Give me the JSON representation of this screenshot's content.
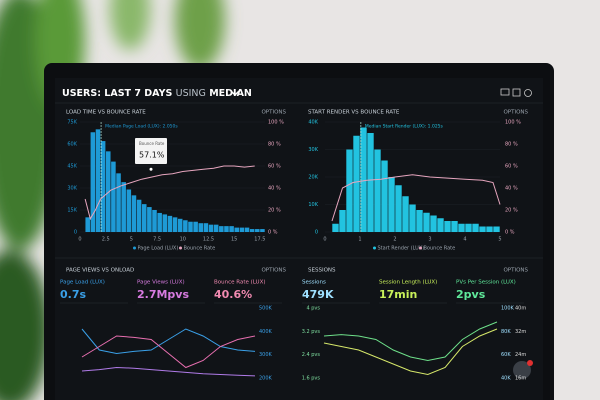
{
  "header": {
    "prefix": "USERS: LAST 7 DAYS",
    "middle": "USING",
    "suffix": "MEDIAN"
  },
  "panels": [
    {
      "title": "LOAD TIME VS BOUNCE RATE",
      "options": "OPTIONS",
      "type": "histogram",
      "color": "#1e9ad6",
      "line_color": "#e7a6bf",
      "bins": [
        0.5,
        1,
        1.5,
        2,
        2.5,
        3,
        3.5,
        4,
        4.5,
        5,
        5.5,
        6,
        6.5,
        7,
        7.5,
        8,
        8.5,
        9,
        9.5,
        10,
        10.5,
        11,
        11.5,
        12,
        12.5,
        13,
        13.5,
        14,
        14.5,
        15,
        15.5,
        16,
        16.5,
        17,
        17.5,
        18
      ],
      "values": [
        10,
        68,
        70,
        62,
        55,
        48,
        40,
        34,
        29,
        25,
        22,
        19,
        17,
        15,
        13,
        12,
        11,
        10,
        9,
        8,
        7,
        7,
        6,
        6,
        5,
        5,
        4,
        4,
        4,
        3,
        3,
        3,
        2,
        2,
        2
      ],
      "line": {
        "x": [
          0.5,
          1,
          1.5,
          2,
          3,
          4,
          5,
          6,
          7,
          8,
          9,
          10,
          11,
          12,
          13,
          14,
          15,
          16,
          17
        ],
        "values": [
          30,
          12,
          20,
          30,
          38,
          42,
          45,
          48,
          50,
          52,
          53,
          55,
          56,
          57,
          58,
          60,
          60,
          59,
          60
        ]
      },
      "xlim": [
        0,
        18
      ],
      "ylim": [
        0,
        75
      ],
      "y2lim": [
        0,
        100
      ],
      "xticks": [
        0,
        2.5,
        5,
        7.5,
        10,
        12.5,
        15,
        17.5
      ],
      "yticks": [
        {
          "value": 75,
          "label": "75K"
        },
        {
          "value": 60,
          "label": "60K"
        },
        {
          "value": 45,
          "label": "45K"
        },
        {
          "value": 30,
          "label": "30K"
        },
        {
          "value": 15,
          "label": "15K"
        },
        0
      ],
      "y2ticks": [
        {
          "value": 100,
          "label": "100 %"
        },
        {
          "value": 80,
          "label": "80 %"
        },
        {
          "value": 60,
          "label": "60 %"
        },
        {
          "value": 40,
          "label": "40 %"
        },
        {
          "value": 20,
          "label": "20 %"
        },
        {
          "value": 0,
          "label": "0 %"
        }
      ],
      "median": 2.05,
      "annotation": "Median Page Load (LUX): 2.050s",
      "tooltip": {
        "label": "Bounce Rate",
        "value": 57.1,
        "value_label": "57.1%"
      },
      "legend": [
        "Page Load (LUX)",
        "Bounce Rate"
      ]
    },
    {
      "title": "START RENDER VS BOUNCE RATE",
      "options": "OPTIONS",
      "type": "histogram",
      "color": "#22c3e0",
      "line_color": "#e7a6bf",
      "bins": [
        0.2,
        0.4,
        0.6,
        0.8,
        1,
        1.2,
        1.4,
        1.6,
        1.8,
        2,
        2.2,
        2.4,
        2.6,
        2.8,
        3,
        3.2,
        3.4,
        3.6,
        3.8,
        4,
        4.2,
        4.4,
        4.6,
        4.8,
        5
      ],
      "values": [
        3,
        8,
        30,
        35,
        38,
        36,
        30,
        26,
        20,
        17,
        13,
        10,
        8,
        7,
        6,
        5,
        4,
        4,
        3,
        3,
        3,
        2,
        2,
        2
      ],
      "line": {
        "x": [
          0.2,
          0.5,
          0.8,
          1.2,
          1.6,
          2,
          2.5,
          3,
          3.5,
          4,
          4.5,
          4.8,
          5
        ],
        "values": [
          10,
          40,
          45,
          47,
          48,
          50,
          52,
          50,
          49,
          48,
          47,
          45,
          25
        ]
      },
      "xlim": [
        0,
        5
      ],
      "ylim": [
        0,
        40
      ],
      "y2lim": [
        0,
        100
      ],
      "xticks": [
        0,
        1,
        2,
        3,
        4,
        5
      ],
      "yticks": [
        {
          "value": 40,
          "label": "40K"
        },
        {
          "value": 30,
          "label": "30K"
        },
        {
          "value": 20,
          "label": "20K"
        },
        {
          "value": 10,
          "label": "10K"
        },
        0
      ],
      "y2ticks": [
        {
          "value": 100,
          "label": "100 %"
        },
        {
          "value": 80,
          "label": "80 %"
        },
        {
          "value": 60,
          "label": "60 %"
        },
        {
          "value": 40,
          "label": "40 %"
        },
        {
          "value": 20,
          "label": "20 %"
        },
        {
          "value": 0,
          "label": "0 %"
        }
      ],
      "median": 1.025,
      "annotation": "Median Start Render (LUX): 1.025s",
      "legend": [
        "Start Render (LUX)",
        "Bounce Rate"
      ]
    },
    {
      "title": "PAGE VIEWS VS ONLOAD",
      "options": "OPTIONS",
      "type": "lines",
      "metrics": [
        {
          "label": "Page Load (LUX)",
          "value": "0.7s",
          "color": "#3aa0e8"
        },
        {
          "label": "Page Views (LUX)",
          "value": "2.7Mpvs",
          "color": "#d77be0"
        },
        {
          "label": "Bounce Rate (LUX)",
          "value": "40.6%",
          "color": "#f08ab0"
        }
      ],
      "ylim": [
        0,
        100
      ],
      "series": [
        {
          "color": "#3aa0e8",
          "values": [
            70,
            40,
            35,
            38,
            40,
            55,
            70,
            60,
            45,
            40,
            38
          ]
        },
        {
          "color": "#e86fb0",
          "values": [
            30,
            45,
            60,
            58,
            55,
            35,
            15,
            25,
            45,
            55,
            60
          ]
        },
        {
          "color": "#b07be8",
          "values": [
            10,
            12,
            15,
            14,
            12,
            10,
            8,
            6,
            5,
            4,
            3
          ]
        }
      ],
      "left_ticks": [],
      "right_ticks": [
        "500K",
        "400K",
        "300K",
        "200K"
      ],
      "right_ticks2": []
    },
    {
      "title": "SESSIONS",
      "options": "OPTIONS",
      "type": "lines",
      "metrics": [
        {
          "label": "Sessions",
          "value": "479K",
          "color": "#9fe0ff"
        },
        {
          "label": "Session Length (LUX)",
          "value": "17min",
          "color": "#c8f05a"
        },
        {
          "label": "PVs Per Session (LUX)",
          "value": "2pvs",
          "color": "#5fe89a"
        }
      ],
      "ylim": [
        0,
        100
      ],
      "series": [
        {
          "color": "#6ee08a",
          "values": [
            60,
            62,
            60,
            55,
            40,
            30,
            25,
            30,
            55,
            70,
            80
          ]
        },
        {
          "color": "#d6e86a",
          "values": [
            50,
            45,
            40,
            30,
            20,
            10,
            5,
            15,
            45,
            60,
            70
          ]
        }
      ],
      "left_ticks": [
        "4 pvs",
        "3.2 pvs",
        "2.4 pvs",
        "1.6 pvs"
      ],
      "right_ticks": [
        "100K",
        "80K",
        "60K",
        "40K"
      ],
      "right_ticks2": [
        "40m",
        "32m",
        "24m",
        "16m"
      ]
    }
  ]
}
